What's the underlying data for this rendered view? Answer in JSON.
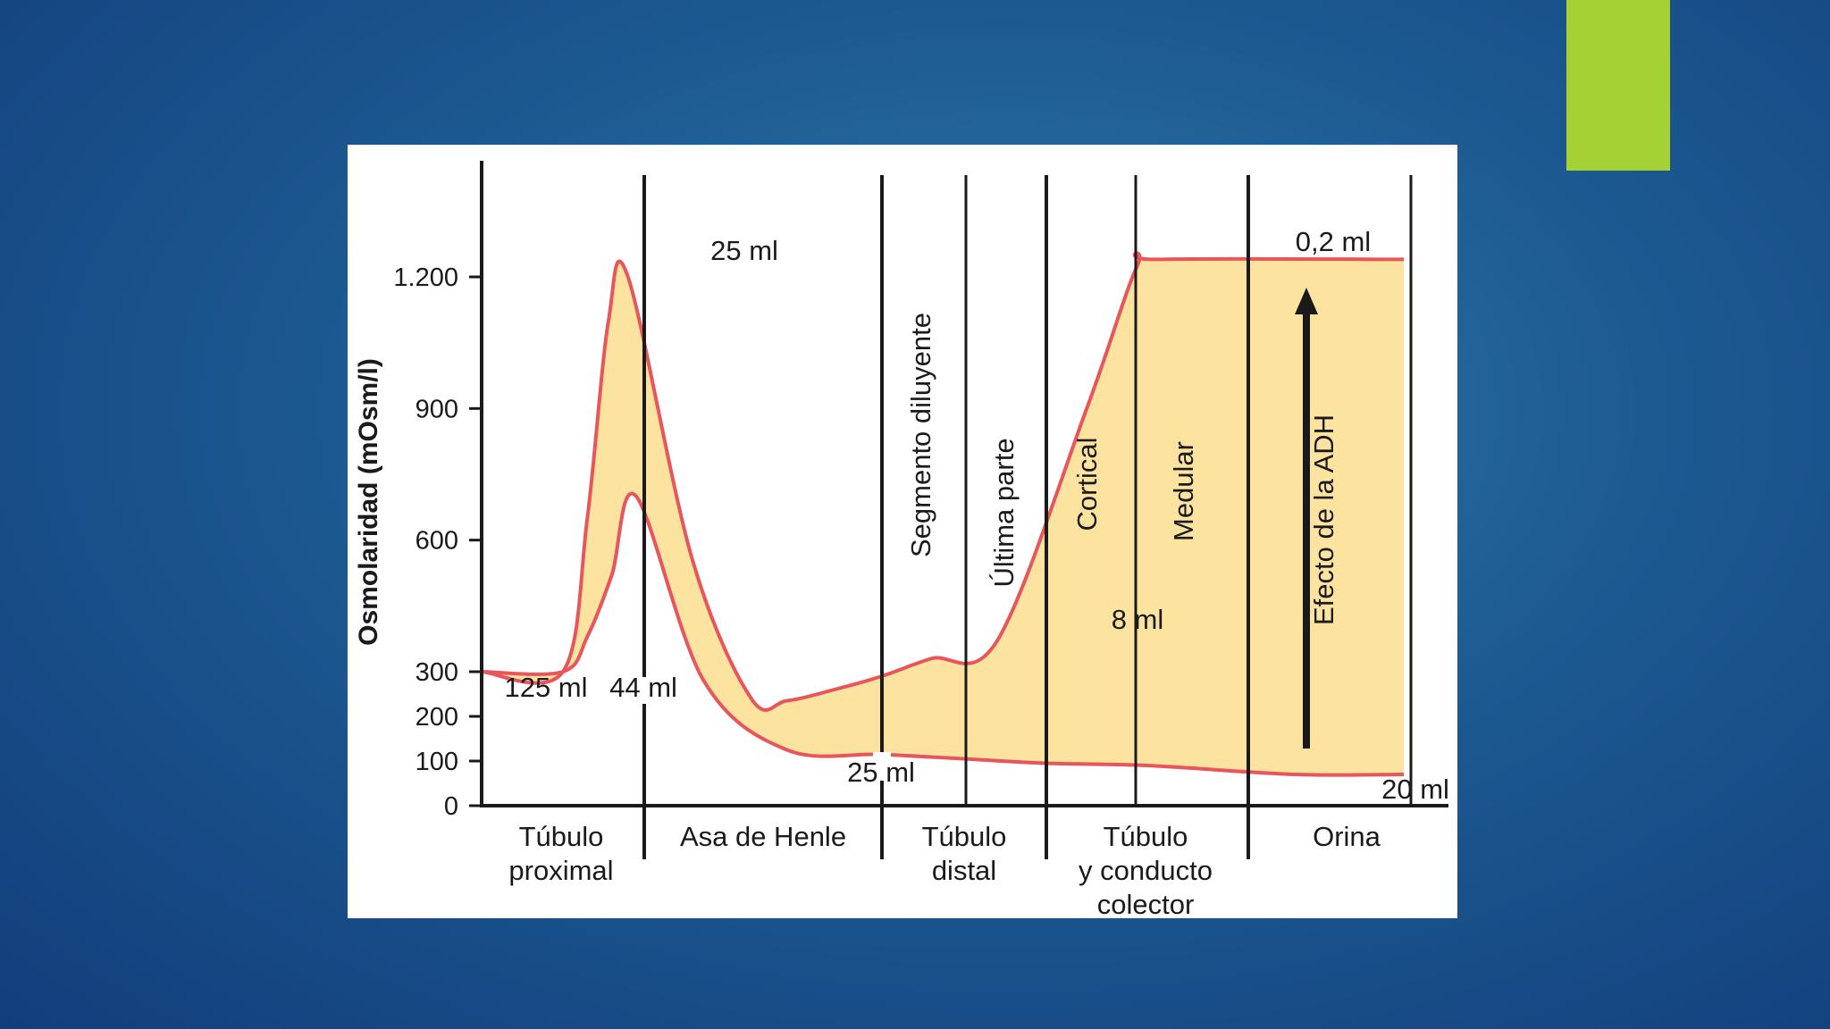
{
  "slide": {
    "accent_color": "#a6d134"
  },
  "chart_data": {
    "type": "area",
    "title": "",
    "ylabel": "Osmolaridad (mOsm/l)",
    "ylim": [
      0,
      1200
    ],
    "y_ticks": [
      {
        "value": 0,
        "label": "0"
      },
      {
        "value": 100,
        "label": "100"
      },
      {
        "value": 200,
        "label": "200"
      },
      {
        "value": 300,
        "label": "300"
      },
      {
        "value": 600,
        "label": "600"
      },
      {
        "value": 900,
        "label": "900"
      },
      {
        "value": 1200,
        "label": "1.200"
      }
    ],
    "segments": [
      {
        "label": [
          "Túbulo",
          "proximal"
        ]
      },
      {
        "label": [
          "Asa de Henle"
        ]
      },
      {
        "label": [
          "Túbulo",
          "distal"
        ]
      },
      {
        "label": [
          "Túbulo",
          "y conducto",
          "colector"
        ]
      },
      {
        "label": [
          "Orina"
        ]
      }
    ],
    "sub_segments": [
      "Segmento diluyente",
      "Última parte",
      "Cortical",
      "Medular"
    ],
    "series": [
      {
        "values_upper": [
          [
            0,
            300
          ],
          [
            0.5,
            300
          ],
          [
            0.65,
            650
          ],
          [
            0.78,
            1100
          ],
          [
            0.9,
            1200
          ],
          [
            1.2,
            560
          ],
          [
            1.45,
            240
          ],
          [
            1.6,
            235
          ],
          [
            1.8,
            260
          ],
          [
            2.0,
            290
          ],
          [
            2.3,
            330
          ],
          [
            2.7,
            370
          ],
          [
            3.2,
            900
          ],
          [
            3.45,
            1225
          ],
          [
            3.55,
            1240
          ],
          [
            5,
            1240
          ]
        ]
      },
      {
        "values_lower": [
          [
            0,
            300
          ],
          [
            0.5,
            300
          ],
          [
            0.65,
            380
          ],
          [
            0.8,
            520
          ],
          [
            0.95,
            700
          ],
          [
            1.25,
            280
          ],
          [
            1.6,
            125
          ],
          [
            2.0,
            115
          ],
          [
            2.5,
            105
          ],
          [
            3.0,
            95
          ],
          [
            3.5,
            90
          ],
          [
            4.3,
            70
          ],
          [
            5,
            70
          ]
        ]
      }
    ],
    "annotations": [
      {
        "text": "125 ml"
      },
      {
        "text": "44 ml"
      },
      {
        "text": "25 ml",
        "at": "peak"
      },
      {
        "text": "25 ml",
        "at": "distal-start"
      },
      {
        "text": "8 ml"
      },
      {
        "text": "0,2 ml"
      },
      {
        "text": "20 ml"
      }
    ],
    "arrow_label": "Efecto de la ADH",
    "colors": {
      "fill": "#fde3a0",
      "line": "#e8555b",
      "axis": "#1a1a1a"
    }
  }
}
